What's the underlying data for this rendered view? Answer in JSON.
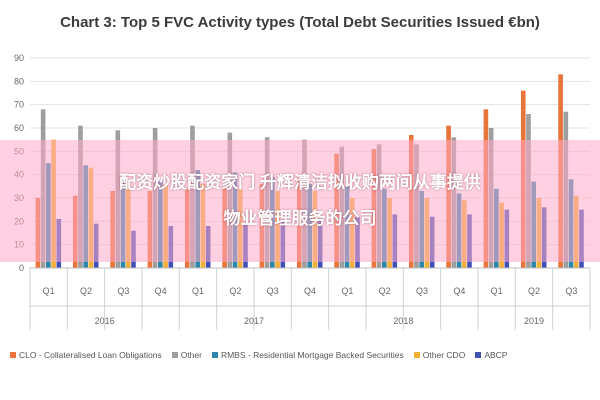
{
  "chart_data": {
    "type": "bar",
    "title": "Chart 3: Top 5 FVC Activity types (Total Debt Securities Issued €bn)",
    "ylim": [
      0,
      90
    ],
    "yticks": [
      0,
      10,
      20,
      30,
      40,
      50,
      60,
      70,
      80,
      90
    ],
    "grid": true,
    "legend_position": "bottom",
    "categories": [
      "Q1",
      "Q2",
      "Q3",
      "Q4",
      "Q1",
      "Q2",
      "Q3",
      "Q4",
      "Q1",
      "Q2",
      "Q3",
      "Q4",
      "Q1",
      "Q2",
      "Q3"
    ],
    "year_groups": [
      {
        "label": "2016",
        "count": 4
      },
      {
        "label": "2017",
        "count": 4
      },
      {
        "label": "2018",
        "count": 4
      },
      {
        "label": "2019",
        "count": 3
      }
    ],
    "series": [
      {
        "name": "CLO - Collateralised Loan Obligations",
        "color": "#E8743B",
        "values": [
          30,
          31,
          33,
          33,
          34,
          35,
          36,
          38,
          49,
          51,
          57,
          61,
          68,
          76,
          83
        ]
      },
      {
        "name": "Other",
        "color": "#9E9E9E",
        "values": [
          68,
          61,
          59,
          60,
          61,
          58,
          56,
          55,
          52,
          53,
          53,
          56,
          60,
          66,
          67
        ]
      },
      {
        "name": "RMBS - Residential Mortgage Backed Securities",
        "color": "#2E86AB",
        "values": [
          45,
          44,
          38,
          37,
          42,
          41,
          39,
          36,
          35,
          34,
          33,
          32,
          34,
          37,
          38
        ]
      },
      {
        "name": "Other CDO",
        "color": "#F2B134",
        "values": [
          55,
          43,
          38,
          36,
          36,
          34,
          33,
          33,
          30,
          30,
          30,
          29,
          28,
          30,
          31
        ]
      },
      {
        "name": "ABCP",
        "color": "#3F51B5",
        "values": [
          21,
          19,
          16,
          18,
          18,
          19,
          20,
          21,
          22,
          23,
          22,
          23,
          25,
          26,
          25
        ]
      }
    ]
  },
  "overlay": {
    "line1": "配资炒股配资家门 升辉清洁拟收购两间从事提供",
    "line2": "物业管理服务的公司"
  }
}
